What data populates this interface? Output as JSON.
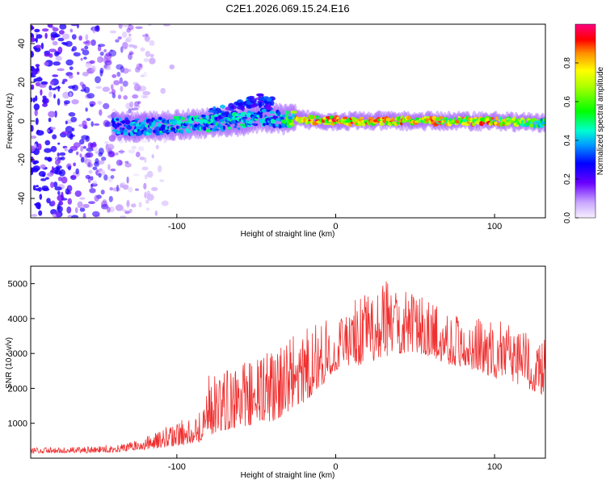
{
  "figure_title": "C2E1.2026.069.15.24.E16",
  "colors": {
    "snr_line": "#f03030",
    "axis": "#000000",
    "background": "#ffffff"
  },
  "chart_data": [
    {
      "type": "heatmap",
      "title": "C2E1.2026.069.15.24.E16",
      "xlabel": "Height of straight line (km)",
      "ylabel": "Frequency (Hz)",
      "xlim": [
        -192,
        132
      ],
      "ylim": [
        -50,
        50
      ],
      "x_ticks": [
        -100,
        0,
        100
      ],
      "y_ticks": [
        -40,
        -20,
        0,
        20,
        40
      ],
      "colorbar": {
        "label": "Normalized spectral amplitude",
        "range": [
          0,
          1
        ],
        "ticks": [
          0.0,
          0.2,
          0.4,
          0.6,
          0.8
        ]
      },
      "description_data": {
        "noise_region_x": [
          -192,
          -115
        ],
        "noise_level": 0.35,
        "signal_onset_x": -140,
        "track": [
          {
            "x": -140,
            "freq": -3,
            "amp": 0.45
          },
          {
            "x": -120,
            "freq": -3,
            "amp": 0.5
          },
          {
            "x": -100,
            "freq": -2,
            "amp": 0.55
          },
          {
            "x": -80,
            "freq": -1,
            "amp": 0.55
          },
          {
            "x": -60,
            "freq": 0,
            "amp": 0.55
          },
          {
            "x": -45,
            "freq": 2,
            "amp": 0.5
          },
          {
            "x": -35,
            "freq": 1,
            "amp": 0.5
          },
          {
            "x": -25,
            "freq": 1,
            "amp": 0.85
          },
          {
            "x": 0,
            "freq": 0,
            "amp": 0.95
          },
          {
            "x": 25,
            "freq": 0,
            "amp": 0.9
          },
          {
            "x": 50,
            "freq": 0,
            "amp": 0.9
          },
          {
            "x": 75,
            "freq": 0,
            "amp": 0.85
          },
          {
            "x": 100,
            "freq": 0,
            "amp": 0.9
          },
          {
            "x": 128,
            "freq": -1,
            "amp": 0.6
          }
        ],
        "upward_branch": [
          {
            "x": -80,
            "freq": 3
          },
          {
            "x": -65,
            "freq": 6
          },
          {
            "x": -50,
            "freq": 11
          },
          {
            "x": -40,
            "freq": 9
          }
        ]
      }
    },
    {
      "type": "line",
      "xlabel": "Height of straight line (km)",
      "ylabel": "SNR (10 * v/v)",
      "xlim": [
        -192,
        132
      ],
      "ylim": [
        0,
        5500
      ],
      "x_ticks": [
        -100,
        0,
        100
      ],
      "y_ticks": [
        1000,
        2000,
        3000,
        4000,
        5000
      ],
      "series": [
        {
          "name": "SNR",
          "envelope": {
            "x": [
              -192,
              -160,
              -140,
              -125,
              -110,
              -95,
              -85,
              -80,
              -70,
              -60,
              -50,
              -40,
              -30,
              -20,
              -10,
              0,
              10,
              20,
              30,
              40,
              50,
              60,
              70,
              80,
              90,
              100,
              110,
              120,
              132
            ],
            "low": [
              150,
              150,
              170,
              220,
              300,
              380,
              480,
              650,
              800,
              900,
              950,
              1050,
              1300,
              1600,
              2000,
              2500,
              2600,
              2700,
              2900,
              3000,
              3000,
              2900,
              2700,
              2600,
              2500,
              2300,
              2200,
              2000,
              1800
            ],
            "high": [
              300,
              320,
              370,
              500,
              800,
              1100,
              1400,
              2300,
              2500,
              2700,
              2900,
              3100,
              3400,
              3700,
              3900,
              4100,
              4500,
              4700,
              5200,
              5000,
              4700,
              4500,
              4300,
              4100,
              4000,
              3900,
              3800,
              3600,
              3400
            ]
          }
        }
      ]
    }
  ]
}
